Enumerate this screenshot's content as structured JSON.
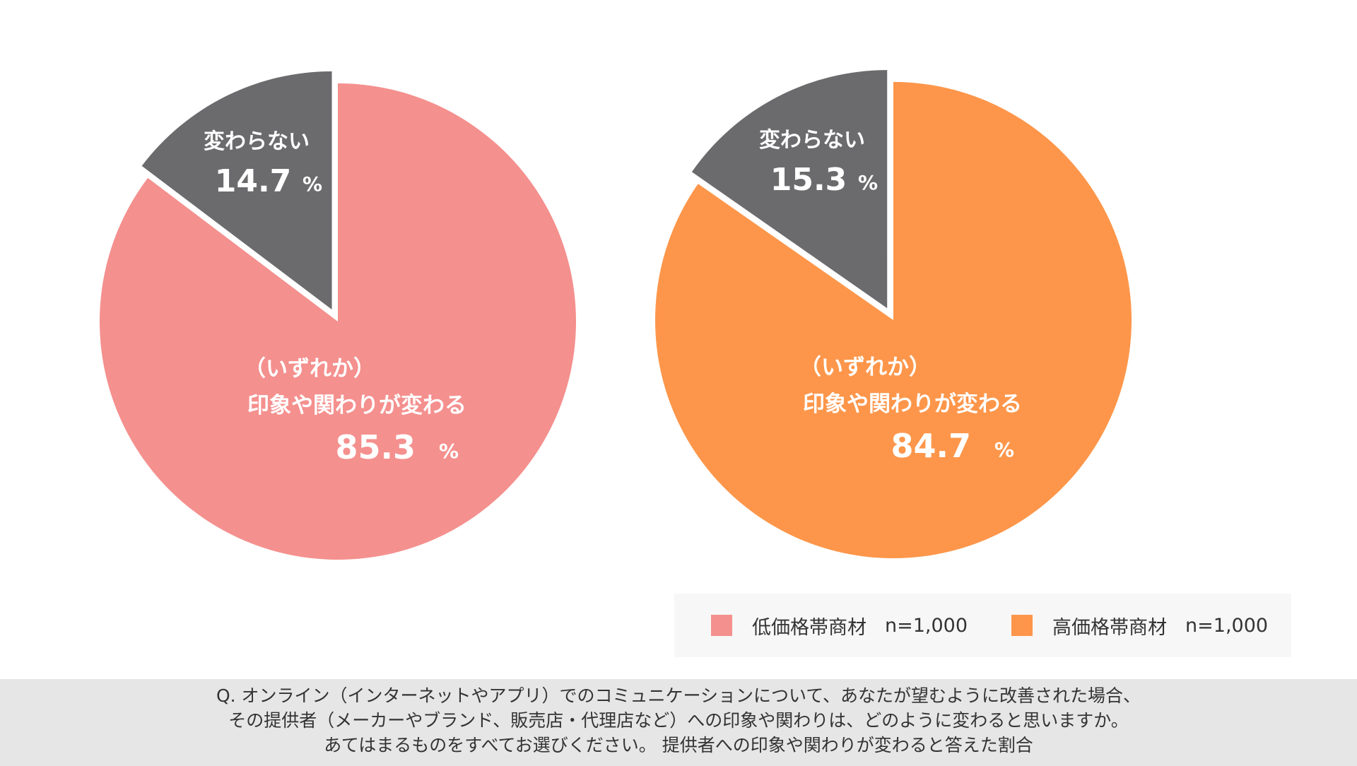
{
  "chart_data": [
    {
      "type": "pie",
      "series_name": "低価格帯商材 n=1,000",
      "slices": [
        {
          "label_lines": [
            "（いずれか）",
            "印象や関わりが変わる"
          ],
          "value": 85.3,
          "value_text": "85.3",
          "color": "#f4908e"
        },
        {
          "label_lines": [
            "変わらない"
          ],
          "value": 14.7,
          "value_text": "14.7",
          "color": "#6b6b6d",
          "exploded": true
        }
      ],
      "unit": "%"
    },
    {
      "type": "pie",
      "series_name": "高価格帯商材 n=1,000",
      "slices": [
        {
          "label_lines": [
            "（いずれか）",
            "印象や関わりが変わる"
          ],
          "value": 84.7,
          "value_text": "84.7",
          "color": "#fd964a"
        },
        {
          "label_lines": [
            "変わらない"
          ],
          "value": 15.3,
          "value_text": "15.3",
          "color": "#6b6b6d",
          "exploded": true
        }
      ],
      "unit": "%"
    }
  ],
  "legend": [
    {
      "label": "低価格帯商材",
      "n": "n=1,000",
      "color": "#f4908e"
    },
    {
      "label": "高価格帯商材",
      "n": "n=1,000",
      "color": "#fd964a"
    }
  ],
  "footer": {
    "lines": [
      "Q. オンライン（インターネットやアプリ）でのコミュニケーションについて、あなたが望むように改善された場合、",
      "その提供者（メーカーやブランド、販売店・代理店など）への印象や関わりは、どのように変わると思いますか。",
      "あてはまるものをすべてお選びください。 提供者への印象や関わりが変わると答えた割合"
    ]
  }
}
